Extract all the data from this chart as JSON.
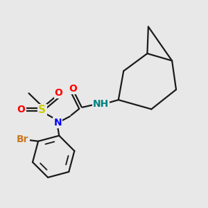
{
  "bg_color": "#e8e8e8",
  "bond_color": "#1a1a1a",
  "bond_width": 1.6,
  "atom_colors": {
    "O": "#ff0000",
    "N": "#0000ff",
    "S": "#cccc00",
    "Br": "#cc7722",
    "NH": "#008080",
    "C": "#1a1a1a"
  },
  "font_size_atoms": 10,
  "font_size_small": 9,
  "xlim": [
    0,
    10
  ],
  "ylim": [
    0,
    10
  ]
}
